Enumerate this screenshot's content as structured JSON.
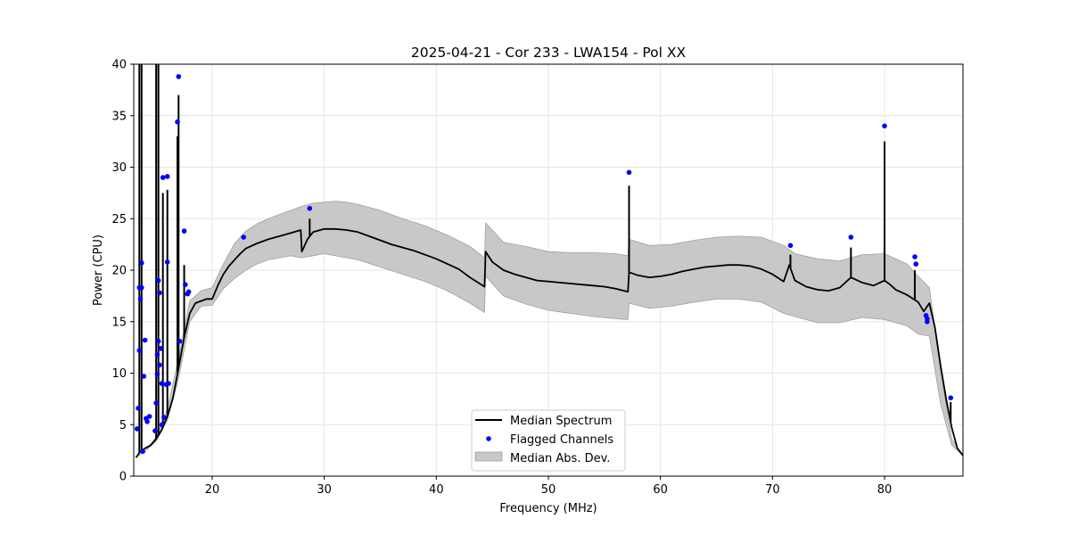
{
  "chart_data": {
    "type": "line",
    "title": "2025-04-21 - Cor 233 - LWA154 - Pol XX",
    "xlabel": "Frequency (MHz)",
    "ylabel": "Power (CPU)",
    "xlim": [
      13.0,
      87.0
    ],
    "ylim": [
      0,
      40
    ],
    "x_ticks": [
      20,
      30,
      40,
      50,
      60,
      70,
      80
    ],
    "y_ticks": [
      0,
      5,
      10,
      15,
      20,
      25,
      30,
      35,
      40
    ],
    "grid": true,
    "legend_position": "bottom-center",
    "legend": [
      "Median Spectrum",
      "Flagged Channels",
      "Median Abs. Dev."
    ],
    "colors": {
      "line": "#000000",
      "flagged": "#0000ff",
      "band": "#c8c8c8",
      "band_edge": "#a0a0a0",
      "grid": "#e6e6e6"
    },
    "series": [
      {
        "name": "Median Spectrum",
        "type": "line",
        "x": [
          13.2,
          13.6,
          14.0,
          14.5,
          15.0,
          15.5,
          16.0,
          16.5,
          17.0,
          17.5,
          18.0,
          18.5,
          19.0,
          19.5,
          20.0,
          20.5,
          21.0,
          21.5,
          22.0,
          22.5,
          23.0,
          24.0,
          25.0,
          26.0,
          27.0,
          27.9,
          28.0,
          28.5,
          29.0,
          30.0,
          31.0,
          32.0,
          33.0,
          34.0,
          35.0,
          36.0,
          37.0,
          38.0,
          39.0,
          40.0,
          41.0,
          42.0,
          43.0,
          44.3,
          44.4,
          45.0,
          46.0,
          47.0,
          48.0,
          49.0,
          50.0,
          51.0,
          52.0,
          53.0,
          54.0,
          55.0,
          56.0,
          57.1,
          57.2,
          58.0,
          59.0,
          60.0,
          61.0,
          62.0,
          63.0,
          64.0,
          65.0,
          66.0,
          67.0,
          68.0,
          69.0,
          70.0,
          71.0,
          71.5,
          72.0,
          73.0,
          74.0,
          75.0,
          76.0,
          77.0,
          78.0,
          79.0,
          80.0,
          80.5,
          81.0,
          82.0,
          83.0,
          83.5,
          84.0,
          84.5,
          85.0,
          85.5,
          86.0,
          86.5,
          87.0
        ],
        "y": [
          1.8,
          2.4,
          2.7,
          3.0,
          3.6,
          4.5,
          5.8,
          7.6,
          10.5,
          13.5,
          15.8,
          16.8,
          17.0,
          17.2,
          17.2,
          18.5,
          19.6,
          20.4,
          21.0,
          21.6,
          22.1,
          22.6,
          23.0,
          23.3,
          23.6,
          23.9,
          21.8,
          23.0,
          23.7,
          24.0,
          24.0,
          23.9,
          23.7,
          23.3,
          22.9,
          22.5,
          22.2,
          21.9,
          21.5,
          21.1,
          20.6,
          20.1,
          19.3,
          18.4,
          21.8,
          20.8,
          20.0,
          19.6,
          19.3,
          19.0,
          18.9,
          18.8,
          18.7,
          18.6,
          18.5,
          18.4,
          18.2,
          17.9,
          19.8,
          19.5,
          19.3,
          19.4,
          19.6,
          19.9,
          20.1,
          20.3,
          20.4,
          20.5,
          20.5,
          20.4,
          20.1,
          19.6,
          18.9,
          20.5,
          19.0,
          18.4,
          18.1,
          18.0,
          18.3,
          19.3,
          18.8,
          18.5,
          19.0,
          18.6,
          18.1,
          17.6,
          16.9,
          16.0,
          16.8,
          14.4,
          10.7,
          7.5,
          4.7,
          2.7,
          2.0
        ]
      },
      {
        "name": "Median Abs. Dev.",
        "type": "band",
        "x": [
          13.2,
          14.0,
          15.0,
          16.0,
          17.0,
          18.0,
          19.0,
          20.0,
          21.0,
          22.0,
          23.0,
          24.0,
          25.0,
          26.0,
          27.0,
          28.0,
          29.0,
          30.0,
          31.0,
          32.0,
          33.0,
          35.0,
          37.0,
          39.0,
          41.0,
          43.0,
          44.3,
          44.4,
          46.0,
          48.0,
          50.0,
          52.0,
          54.0,
          56.0,
          57.1,
          57.2,
          59.0,
          61.0,
          63.0,
          65.0,
          67.0,
          69.0,
          71.0,
          72.0,
          74.0,
          76.0,
          78.0,
          80.0,
          82.0,
          83.0,
          84.0,
          85.0,
          86.0,
          87.0
        ],
        "lower": [
          1.8,
          2.4,
          3.4,
          5.4,
          9.5,
          15.0,
          16.5,
          16.6,
          18.2,
          19.2,
          20.0,
          20.6,
          21.0,
          21.2,
          21.4,
          21.2,
          21.4,
          21.6,
          21.4,
          21.2,
          21.0,
          20.3,
          19.6,
          18.9,
          18.0,
          16.8,
          15.9,
          19.4,
          17.5,
          16.7,
          16.1,
          15.8,
          15.5,
          15.3,
          15.2,
          16.8,
          16.3,
          16.5,
          16.9,
          17.2,
          17.2,
          16.9,
          15.8,
          15.5,
          14.9,
          14.9,
          15.4,
          15.2,
          14.6,
          13.8,
          13.6,
          7.0,
          3.0,
          2.0
        ],
        "upper": [
          1.8,
          2.4,
          3.8,
          6.5,
          11.5,
          17.0,
          18.0,
          18.3,
          20.6,
          22.6,
          23.8,
          24.5,
          25.0,
          25.4,
          25.8,
          26.2,
          26.5,
          26.6,
          26.7,
          26.6,
          26.4,
          25.8,
          25.0,
          24.3,
          23.4,
          22.3,
          21.2,
          24.6,
          22.7,
          22.3,
          21.8,
          21.7,
          21.7,
          21.6,
          21.4,
          23.0,
          22.4,
          22.5,
          22.9,
          23.2,
          23.3,
          23.2,
          22.4,
          21.6,
          21.1,
          20.9,
          21.5,
          21.6,
          20.6,
          19.4,
          18.3,
          10.2,
          3.6,
          2.0
        ]
      },
      {
        "name": "Flagged Channels",
        "type": "scatter",
        "x": [
          13.3,
          13.4,
          13.5,
          13.5,
          13.6,
          13.7,
          13.7,
          13.8,
          13.9,
          14.0,
          14.1,
          14.2,
          14.4,
          14.9,
          15.0,
          15.1,
          15.1,
          15.2,
          15.2,
          15.3,
          15.3,
          15.4,
          15.5,
          15.5,
          15.6,
          15.7,
          15.9,
          16.0,
          16.0,
          16.1,
          16.9,
          17.0,
          17.1,
          17.5,
          17.6,
          17.8,
          17.9,
          22.8,
          28.7,
          57.2,
          71.6,
          77.0,
          80.0,
          82.7,
          82.8,
          83.7,
          83.8,
          83.8,
          85.9
        ],
        "y": [
          4.6,
          6.6,
          18.3,
          12.2,
          17.2,
          18.3,
          20.7,
          2.4,
          9.7,
          13.2,
          5.6,
          5.3,
          5.8,
          4.4,
          7.1,
          9.9,
          11.8,
          19.0,
          13.1,
          17.8,
          10.8,
          12.4,
          5.0,
          9.0,
          29.0,
          5.7,
          8.9,
          29.1,
          20.8,
          9.0,
          34.4,
          38.8,
          13.1,
          23.8,
          18.6,
          17.7,
          17.9,
          23.2,
          26.0,
          29.5,
          22.4,
          23.2,
          34.0,
          21.3,
          20.6,
          15.6,
          15.3,
          15.0,
          7.6
        ]
      },
      {
        "name": "Flagged Spikes",
        "type": "spikes",
        "x": [
          13.5,
          13.7,
          15.0,
          15.2,
          15.6,
          16.0,
          16.9,
          17.0,
          17.5,
          28.7,
          57.2,
          71.6,
          77.0,
          80.0,
          82.7,
          85.9
        ],
        "y": [
          40,
          40,
          40,
          40,
          27.5,
          27.8,
          33.0,
          37.0,
          20.5,
          25.0,
          28.2,
          21.5,
          22.2,
          32.5,
          20.0,
          7.2
        ]
      }
    ]
  }
}
